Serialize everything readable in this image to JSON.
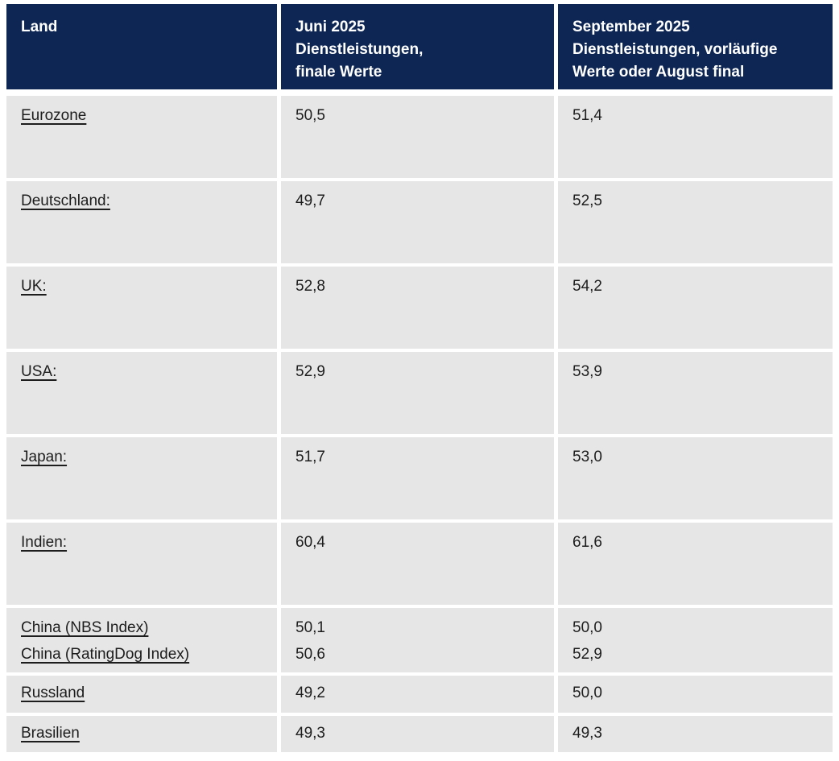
{
  "header": {
    "land": "Land",
    "june": {
      "lines": [
        "Juni 2025",
        "Dienstleistungen,",
        "finale Werte"
      ]
    },
    "september": {
      "lines": [
        "September 2025",
        "Dienstleistungen, vorläufige",
        "Werte oder August final"
      ]
    }
  },
  "rows": [
    {
      "name": "Eurozone",
      "june": "50,5",
      "september": "51,4"
    },
    {
      "name": "Deutschland:",
      "june": "49,7",
      "september": "52,5"
    },
    {
      "name": "UK:",
      "june": "52,8",
      "september": "54,2"
    },
    {
      "name": "USA:",
      "june": "52,9",
      "september": "53,9"
    },
    {
      "name": "Japan:",
      "june": "51,7",
      "september": "53,0"
    },
    {
      "name": "Indien:",
      "june": "60,4",
      "september": "61,6"
    },
    {
      "name": "China (NBS Index)",
      "name2": "China (RatingDog Index)",
      "june": "50,1",
      "june2": "50,6",
      "september": "50,0",
      "september2": "52,9"
    },
    {
      "name": "Russland",
      "june": "49,2",
      "september": "50,0"
    },
    {
      "name": "Brasilien",
      "june": "49,3",
      "september": "49,3"
    }
  ],
  "colors": {
    "header_background": "#0e2654",
    "header_text": "#ffffff",
    "row_background": "#e6e6e6",
    "body_text": "#1d1d1d",
    "gap": "#ffffff"
  },
  "chart_data": {
    "type": "table",
    "title": "",
    "columns": [
      "Land",
      "Juni 2025 Dienstleistungen, finale Werte",
      "September 2025 Dienstleistungen, vorläufige Werte oder August final"
    ],
    "rows": [
      [
        "Eurozone",
        "50,5",
        "51,4"
      ],
      [
        "Deutschland:",
        "49,7",
        "52,5"
      ],
      [
        "UK:",
        "52,8",
        "54,2"
      ],
      [
        "USA:",
        "52,9",
        "53,9"
      ],
      [
        "Japan:",
        "51,7",
        "53,0"
      ],
      [
        "Indien:",
        "60,4",
        "61,6"
      ],
      [
        "China (NBS Index)",
        "50,1",
        "50,0"
      ],
      [
        "China (RatingDog Index)",
        "50,6",
        "52,9"
      ],
      [
        "Russland",
        "49,2",
        "50,0"
      ],
      [
        "Brasilien",
        "49,3",
        "49,3"
      ]
    ]
  }
}
